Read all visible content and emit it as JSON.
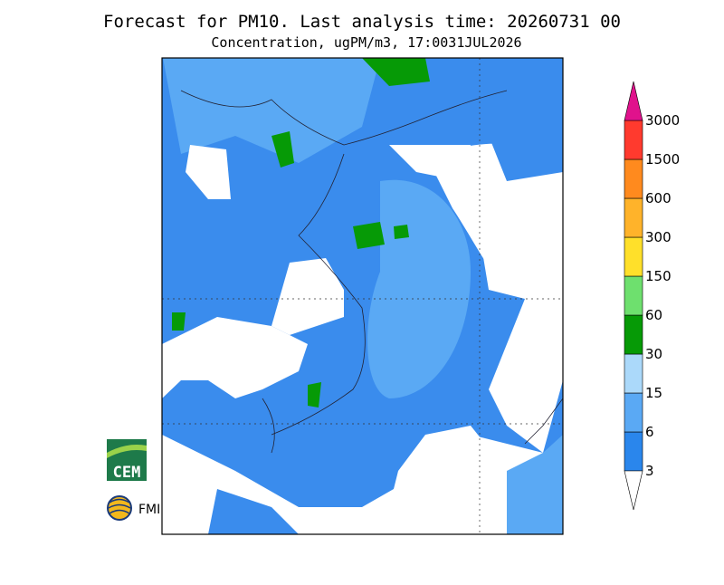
{
  "header": {
    "title": "Forecast for PM10. Last analysis time: 20260731  00",
    "subtitle": "Concentration, ugPM/m3, 17:0031JUL2026"
  },
  "colorbar": {
    "labels": [
      "3",
      "6",
      "15",
      "30",
      "60",
      "150",
      "300",
      "600",
      "1500",
      "3000"
    ],
    "colors": [
      "#2a86ec",
      "#5aa9f4",
      "#abd9fa",
      "#069a06",
      "#6ee06e",
      "#ffe02a",
      "#ffb32a",
      "#ff8a1e",
      "#ff3a2e"
    ],
    "under_color": "#ffffff",
    "over_color": "#e0128c"
  },
  "logos": {
    "cem": "CEM",
    "fmi": "FMI"
  }
}
